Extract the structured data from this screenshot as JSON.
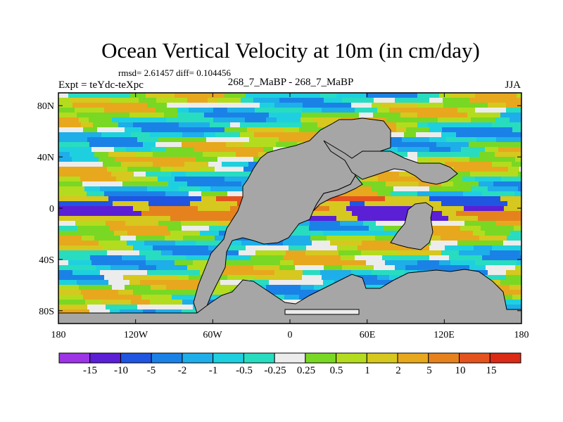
{
  "chart_data": {
    "type": "heatmap",
    "title": "Ocean Vertical Velocity at 10m (in cm/day)",
    "stats_text": "rmsd= 2.61457 diff= 0.104456",
    "left_label": "Expt = teYdc-teXpc",
    "center_label": "268_7_MaBP - 268_7_MaBP",
    "right_label": "JJA",
    "x_tick_labels": [
      "180",
      "120W",
      "60W",
      "0",
      "60E",
      "120E",
      "180"
    ],
    "x_tick_values": [
      -180,
      -120,
      -60,
      0,
      60,
      120,
      180
    ],
    "y_tick_labels": [
      "80N",
      "40N",
      "0",
      "40S",
      "80S"
    ],
    "y_tick_values": [
      80,
      40,
      0,
      -40,
      -80
    ],
    "xlim": [
      -180,
      180
    ],
    "ylim": [
      -90,
      90
    ],
    "land_color": "#a6a6a6",
    "colorbar": {
      "colors": [
        "#9d34e6",
        "#5b1fd6",
        "#1f55e0",
        "#1a82e6",
        "#1eaee9",
        "#1ed0df",
        "#28dcc0",
        "#ececec",
        "#79d824",
        "#b4dc1e",
        "#d6c81e",
        "#e7a81e",
        "#e6821e",
        "#e4531e",
        "#db2a16"
      ],
      "labels": [
        "-15",
        "-10",
        "-5",
        "-2",
        "-1",
        "-0.5",
        "-0.25",
        "0.25",
        "0.5",
        "1",
        "2",
        "5",
        "10",
        "15"
      ]
    }
  }
}
